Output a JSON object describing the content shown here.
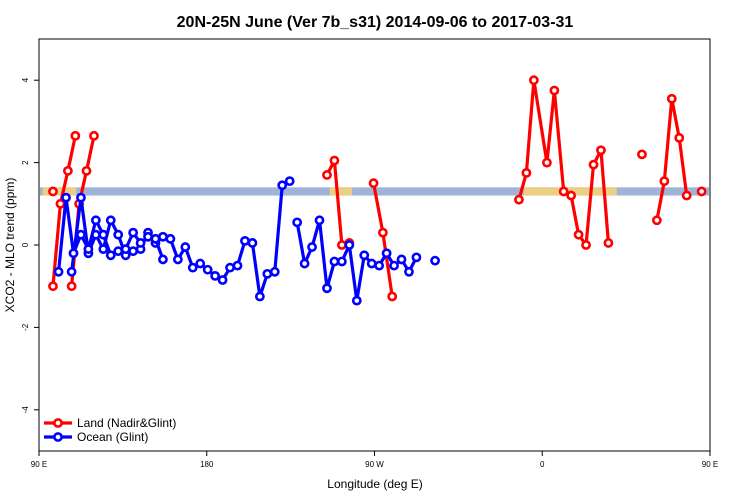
{
  "chart_data": {
    "type": "line",
    "title": "20N-25N June (Ver 7b_s31)   2014-09-06 to 2017-03-31",
    "xlabel": "Longitude (deg E)",
    "ylabel": "XCO2 - MLO trend (ppm)",
    "xlim": [
      90,
      450
    ],
    "ylim": [
      -5,
      5
    ],
    "x_ticks": [
      {
        "value": 90,
        "label": "90 E"
      },
      {
        "value": 180,
        "label": "180"
      },
      {
        "value": 270,
        "label": "90 W"
      },
      {
        "value": 360,
        "label": "0"
      },
      {
        "value": 450,
        "label": "90 E"
      }
    ],
    "y_ticks": [
      {
        "value": -4,
        "label": "-4"
      },
      {
        "value": -2,
        "label": "-2"
      },
      {
        "value": 0,
        "label": "0"
      },
      {
        "value": 2,
        "label": "2"
      },
      {
        "value": 4,
        "label": "4"
      }
    ],
    "series": [
      {
        "name": "Land (Nadir&Glint)",
        "color": "#ff0000",
        "segments": [
          [
            [
              97.5,
              1.3
            ]
          ],
          [
            [
              107.5,
              -1.0
            ],
            [
              111.5,
              1.0
            ],
            [
              115.5,
              1.8
            ],
            [
              119.5,
              2.65
            ]
          ],
          [
            [
              244.5,
              1.7
            ],
            [
              248.5,
              2.05
            ],
            [
              252.5,
              0.0
            ],
            [
              256.5,
              0.05
            ]
          ],
          [
            [
              269.5,
              1.5
            ],
            [
              274.5,
              0.3
            ],
            [
              279.5,
              -1.25
            ]
          ],
          [
            [
              347.5,
              1.1
            ],
            [
              351.5,
              1.75
            ],
            [
              355.5,
              4.0
            ],
            [
              362.5,
              2.0
            ],
            [
              366.5,
              3.75
            ],
            [
              371.5,
              1.3
            ],
            [
              375.5,
              1.2
            ],
            [
              379.5,
              0.25
            ],
            [
              383.5,
              0.0
            ],
            [
              387.5,
              1.95
            ],
            [
              391.5,
              2.3
            ],
            [
              395.5,
              0.05
            ]
          ],
          [
            [
              413.5,
              2.2
            ]
          ],
          [
            [
              421.5,
              0.6
            ],
            [
              425.5,
              1.55
            ],
            [
              429.5,
              3.55
            ],
            [
              433.5,
              2.6
            ],
            [
              437.5,
              1.2
            ]
          ],
          [
            [
              445.5,
              1.3
            ]
          ],
          [
            [
              97.5,
              -1.0
            ],
            [
              101.5,
              1.0
            ],
            [
              105.5,
              1.8
            ],
            [
              109.5,
              2.65
            ]
          ]
        ]
      },
      {
        "name": "Ocean (Glint)",
        "color": "#0000ff",
        "segments": [
          [
            [
              107.5,
              -0.65
            ],
            [
              112.5,
              1.15
            ],
            [
              116.5,
              -0.2
            ],
            [
              120.5,
              0.25
            ],
            [
              124.5,
              -0.1
            ],
            [
              128.5,
              0.6
            ],
            [
              132.5,
              0.25
            ],
            [
              136.5,
              -0.25
            ],
            [
              140.5,
              -0.15
            ],
            [
              144.5,
              -0.1
            ],
            [
              148.5,
              0.3
            ],
            [
              152.5,
              0.05
            ],
            [
              156.5,
              0.2
            ],
            [
              160.5,
              0.15
            ],
            [
              164.5,
              -0.35
            ],
            [
              168.5,
              -0.05
            ],
            [
              172.5,
              -0.55
            ],
            [
              176.5,
              -0.45
            ],
            [
              180.5,
              -0.6
            ],
            [
              184.5,
              -0.75
            ],
            [
              188.5,
              -0.85
            ],
            [
              192.5,
              -0.55
            ],
            [
              196.5,
              -0.5
            ],
            [
              200.5,
              0.1
            ],
            [
              204.5,
              0.05
            ],
            [
              208.5,
              -1.25
            ],
            [
              212.5,
              -0.7
            ],
            [
              216.5,
              -0.65
            ],
            [
              220.5,
              1.45
            ],
            [
              224.5,
              1.55
            ]
          ],
          [
            [
              228.5,
              0.55
            ],
            [
              232.5,
              -0.45
            ],
            [
              236.5,
              -0.05
            ],
            [
              240.5,
              0.6
            ],
            [
              244.5,
              -1.05
            ],
            [
              248.5,
              -0.4
            ],
            [
              252.5,
              -0.4
            ],
            [
              256.5,
              0.0
            ],
            [
              260.5,
              -1.35
            ],
            [
              264.5,
              -0.25
            ],
            [
              268.5,
              -0.45
            ],
            [
              272.5,
              -0.5
            ],
            [
              276.5,
              -0.2
            ],
            [
              280.5,
              -0.5
            ],
            [
              284.5,
              -0.35
            ],
            [
              288.5,
              -0.65
            ],
            [
              292.5,
              -0.3
            ]
          ],
          [
            [
              302.5,
              -0.38
            ]
          ],
          [
            [
              100.5,
              -0.65
            ],
            [
              104.5,
              1.15
            ],
            [
              108.5,
              -0.2
            ],
            [
              112.5,
              0.25
            ],
            [
              116.5,
              -0.1
            ],
            [
              120.5,
              0.6
            ],
            [
              124.5,
              0.25
            ],
            [
              128.5,
              -0.25
            ],
            [
              132.5,
              -0.15
            ],
            [
              136.5,
              -0.1
            ],
            [
              140.5,
              0.3
            ],
            [
              144.5,
              0.05
            ],
            [
              148.5,
              0.2
            ],
            [
              152.5,
              0.15
            ],
            [
              156.5,
              -0.35
            ]
          ]
        ]
      }
    ],
    "background_band": {
      "y_range": [
        1.2,
        1.4
      ],
      "color": "#a0b4d8",
      "highlight_color": "#f5d27a"
    },
    "legend": {
      "placement": "bottom-left"
    },
    "grid": false
  }
}
